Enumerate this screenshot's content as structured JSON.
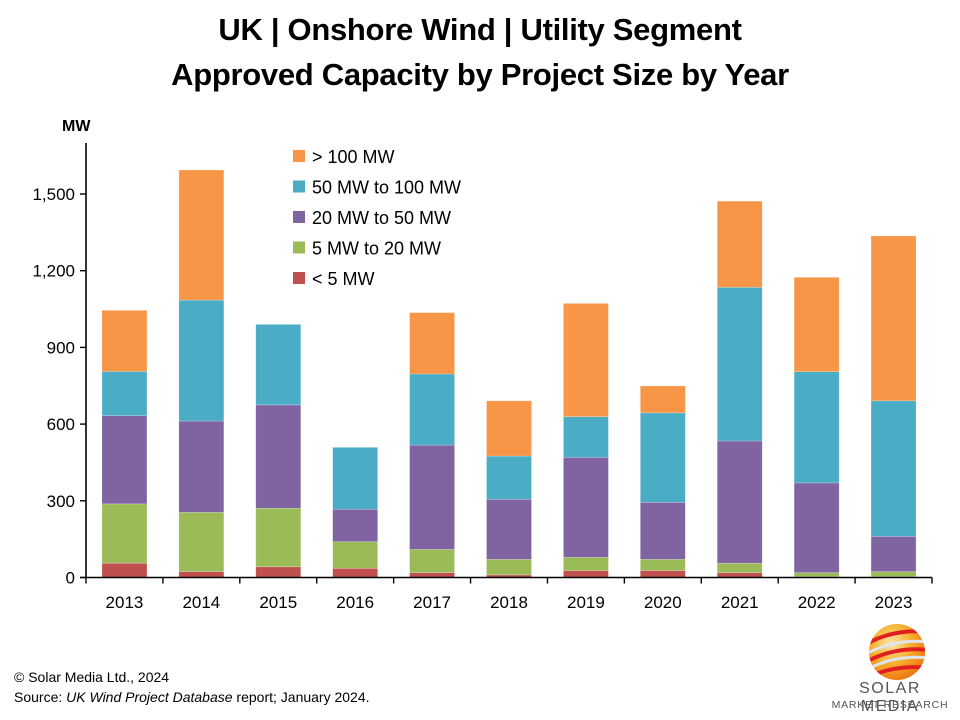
{
  "chart_data": {
    "type": "bar",
    "stacked": true,
    "title": "UK | Onshore Wind | Utility Segment",
    "subtitle": "Approved Capacity by Project Size by Year",
    "xlabel": "",
    "ylabel": "MW",
    "ylim": [
      0,
      1700
    ],
    "yticks": [
      0,
      300,
      600,
      900,
      1200,
      1500
    ],
    "ytick_labels": [
      "0",
      "300",
      "600",
      "900",
      "1,200",
      "1,500"
    ],
    "grid": false,
    "legend_position": "top-center",
    "categories": [
      "2013",
      "2014",
      "2015",
      "2016",
      "2017",
      "2018",
      "2019",
      "2020",
      "2021",
      "2022",
      "2023"
    ],
    "series": [
      {
        "name": "< 5 MW",
        "color": "#C0504D",
        "values": [
          56,
          23,
          42,
          36,
          19,
          10,
          27,
          27,
          19,
          3,
          3
        ]
      },
      {
        "name": "5 MW to 20 MW",
        "color": "#9BBB59",
        "values": [
          232,
          232,
          229,
          104,
          91,
          61,
          52,
          44,
          37,
          16,
          20
        ]
      },
      {
        "name": "20 MW to 50 MW",
        "color": "#8064A2",
        "values": [
          345,
          357,
          404,
          127,
          408,
          235,
          391,
          223,
          478,
          351,
          138
        ]
      },
      {
        "name": "50 MW to 100 MW",
        "color": "#4BACC6",
        "values": [
          173,
          473,
          315,
          242,
          278,
          169,
          159,
          350,
          601,
          435,
          530
        ]
      },
      {
        "name": "> 100 MW",
        "color": "#F79646",
        "values": [
          239,
          509,
          0,
          0,
          240,
          216,
          443,
          105,
          337,
          369,
          645
        ]
      }
    ],
    "legend_order": [
      "> 100 MW",
      "50 MW to 100 MW",
      "20 MW to 50 MW",
      "5 MW to 20 MW",
      "< 5 MW"
    ]
  },
  "footer": {
    "copyright": "© Solar Media Ltd., 2024",
    "source_prefix": "Source: ",
    "source_title": "UK Wind Project Database",
    "source_suffix": " report; January 2024."
  },
  "logo": {
    "line1": "SOLAR MEDIA",
    "line2": "MARKET RESEARCH",
    "icon": "striped-globe-icon"
  }
}
